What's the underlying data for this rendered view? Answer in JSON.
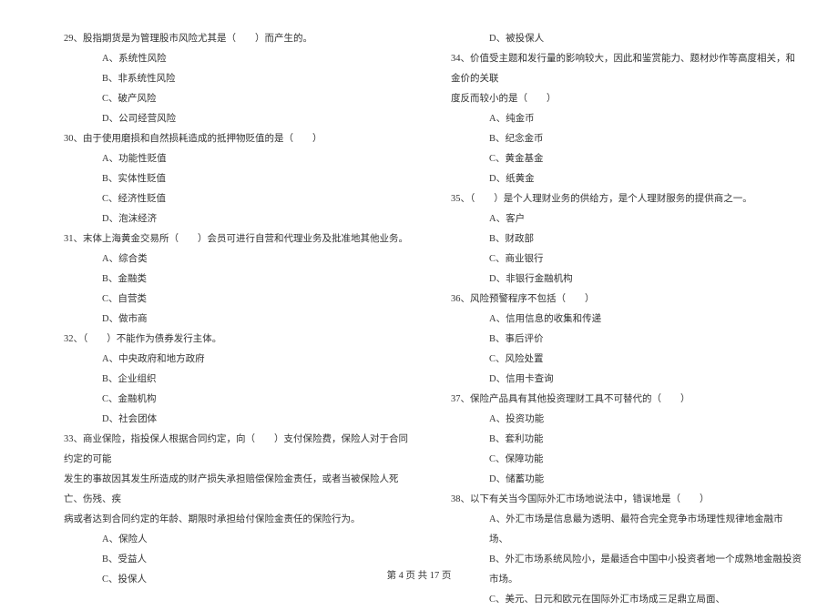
{
  "left": {
    "q29": "29、股指期货是为管理股市风险尤其是（　　）而产生的。",
    "q29a": "A、系统性风险",
    "q29b": "B、非系统性风险",
    "q29c": "C、破产风险",
    "q29d": "D、公司经营风险",
    "q30": "30、由于使用磨损和自然损耗造成的抵押物贬值的是（　　）",
    "q30a": "A、功能性贬值",
    "q30b": "B、实体性贬值",
    "q30c": "C、经济性贬值",
    "q30d": "D、泡沫经济",
    "q31": "31、末体上海黄金交易所（　　）会员可进行自营和代理业务及批准地其他业务。",
    "q31a": "A、综合类",
    "q31b": "B、金融类",
    "q31c": "C、自营类",
    "q31d": "D、做市商",
    "q32": "32、（　　）不能作为债券发行主体。",
    "q32a": "A、中央政府和地方政府",
    "q32b": "B、企业组织",
    "q32c": "C、金融机构",
    "q32d": "D、社会团体",
    "q33": "33、商业保险，指投保人根据合同约定，向（　　）支付保险费，保险人对于合同约定的可能",
    "q33l2": "发生的事故因其发生所造成的财产损失承担赔偿保险金责任，或者当被保险人死亡、伤残、疾",
    "q33l3": "病或者达到合同约定的年龄、期限时承担给付保险金责任的保险行为。",
    "q33a": "A、保险人",
    "q33b": "B、受益人",
    "q33c": "C、投保人"
  },
  "right": {
    "q33d": "D、被投保人",
    "q34": "34、价值受主题和发行量的影响较大，因此和鉴赏能力、题材炒作等高度相关，和金价的关联",
    "q34l2": "度反而较小的是（　　）",
    "q34a": "A、纯金币",
    "q34b": "B、纪念金币",
    "q34c": "C、黄金基金",
    "q34d": "D、纸黄金",
    "q35": "35、（　　）是个人理财业务的供给方，是个人理财服务的提供商之一。",
    "q35a": "A、客户",
    "q35b": "B、财政部",
    "q35c": "C、商业银行",
    "q35d": "D、非银行金融机构",
    "q36": "36、风险预警程序不包括（　　）",
    "q36a": "A、信用信息的收集和传递",
    "q36b": "B、事后评价",
    "q36c": "C、风险处置",
    "q36d": "D、信用卡查询",
    "q37": "37、保险产品具有其他投资理财工具不可替代的（　　）",
    "q37a": "A、投资功能",
    "q37b": "B、套利功能",
    "q37c": "C、保障功能",
    "q37d": "D、储蓄功能",
    "q38": "38、以下有关当今国际外汇市场地说法中，错误地是（　　）",
    "q38a": "A、外汇市场是信息最为透明、最符合完全竞争市场理性规律地金融市场、",
    "q38b": "B、外汇市场系统风险小，是最适合中国中小投资者地一个成熟地金融投资市场。",
    "q38c": "C、美元、日元和欧元在国际外汇市场成三足鼎立局面、"
  },
  "footer": "第 4 页 共 17 页"
}
